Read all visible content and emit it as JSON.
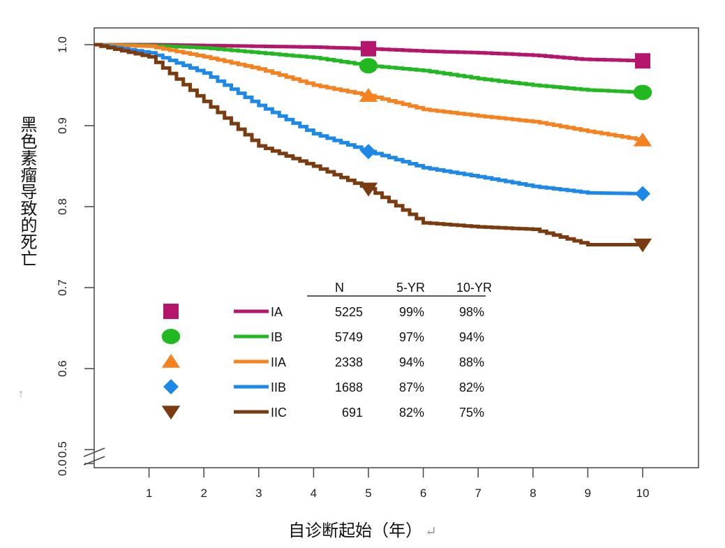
{
  "chart_data": {
    "type": "line",
    "xlabel": "自诊断起始（年）",
    "ylabel": "黑色素瘤导致的死亡",
    "x_ticks": [
      1,
      2,
      3,
      4,
      5,
      6,
      7,
      8,
      9,
      10
    ],
    "y_ticks": [
      1.0,
      0.9,
      0.8,
      0.7,
      0.6,
      0.5
    ],
    "y_tick_labels": [
      "1.0",
      "0.9",
      "0.8",
      "0.7",
      "0.6",
      "0.5"
    ],
    "y_break_label": "0.0",
    "xlim": [
      0,
      11
    ],
    "ylim": [
      0.5,
      1.0
    ],
    "grid": false,
    "table_headers": [
      "N",
      "5-YR",
      "10-YR"
    ],
    "series": [
      {
        "name": "IA",
        "color": "#b5166b",
        "marker": "square",
        "n": "5225",
        "five_yr": "99%",
        "ten_yr": "98%",
        "points": [
          [
            0,
            1.0
          ],
          [
            1,
            1.0
          ],
          [
            2,
            0.999
          ],
          [
            3,
            0.998
          ],
          [
            4,
            0.997
          ],
          [
            5,
            0.995
          ],
          [
            6,
            0.992
          ],
          [
            7,
            0.99
          ],
          [
            8,
            0.987
          ],
          [
            8.9,
            0.982
          ],
          [
            10,
            0.98
          ]
        ]
      },
      {
        "name": "IB",
        "color": "#22b822",
        "marker": "circle",
        "n": "5749",
        "five_yr": "97%",
        "ten_yr": "94%",
        "points": [
          [
            0,
            1.0
          ],
          [
            1,
            0.999
          ],
          [
            2,
            0.996
          ],
          [
            3,
            0.99
          ],
          [
            4,
            0.984
          ],
          [
            5,
            0.974
          ],
          [
            6,
            0.968
          ],
          [
            7,
            0.958
          ],
          [
            8,
            0.95
          ],
          [
            9,
            0.944
          ],
          [
            10,
            0.941
          ]
        ]
      },
      {
        "name": "IIA",
        "color": "#f5821f",
        "marker": "triangle-up",
        "n": "2338",
        "five_yr": "94%",
        "ten_yr": "88%",
        "points": [
          [
            0,
            1.0
          ],
          [
            1,
            0.998
          ],
          [
            2,
            0.985
          ],
          [
            3,
            0.97
          ],
          [
            4,
            0.95
          ],
          [
            5,
            0.937
          ],
          [
            6,
            0.92
          ],
          [
            7,
            0.912
          ],
          [
            8,
            0.905
          ],
          [
            9,
            0.893
          ],
          [
            10,
            0.882
          ]
        ]
      },
      {
        "name": "IIB",
        "color": "#1e88e8",
        "marker": "diamond",
        "n": "1688",
        "five_yr": "87%",
        "ten_yr": "82%",
        "points": [
          [
            0,
            1.0
          ],
          [
            1,
            0.99
          ],
          [
            2,
            0.965
          ],
          [
            3,
            0.925
          ],
          [
            4,
            0.89
          ],
          [
            5,
            0.868
          ],
          [
            6,
            0.848
          ],
          [
            7,
            0.837
          ],
          [
            8,
            0.825
          ],
          [
            9,
            0.817
          ],
          [
            10,
            0.816
          ]
        ]
      },
      {
        "name": "IIC",
        "color": "#7a3b10",
        "marker": "triangle-down",
        "n": "691",
        "five_yr": "82%",
        "ten_yr": "75%",
        "points": [
          [
            0,
            1.0
          ],
          [
            1,
            0.985
          ],
          [
            2,
            0.93
          ],
          [
            3,
            0.875
          ],
          [
            4,
            0.85
          ],
          [
            5,
            0.822
          ],
          [
            6,
            0.78
          ],
          [
            7,
            0.775
          ],
          [
            8,
            0.772
          ],
          [
            9,
            0.753
          ],
          [
            10,
            0.753
          ]
        ]
      }
    ]
  }
}
